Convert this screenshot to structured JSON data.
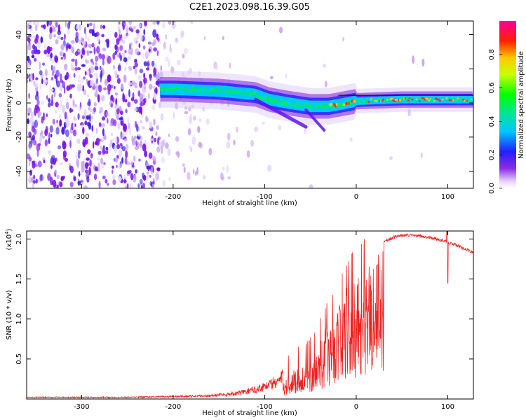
{
  "title": "C2E1.2023.098.16.39.G05",
  "chart_data": [
    {
      "type": "heatmap",
      "xlabel": "Height of straight line (km)",
      "ylabel": "Frequency (Hz)",
      "xlim": [
        -360,
        128
      ],
      "ylim": [
        -50,
        48
      ],
      "xticks": [
        -300,
        -200,
        -100,
        0,
        100
      ],
      "yticks": [
        -40,
        -20,
        0,
        20,
        40
      ],
      "colorbar": {
        "label": "Normalized spectral amplitude",
        "ticks": [
          "0.0",
          "0.2",
          "0.4",
          "0.6",
          "0.8"
        ],
        "range": [
          0,
          1
        ]
      },
      "signal_band": [
        {
          "x": -215,
          "f": 8
        },
        {
          "x": -200,
          "f": 8
        },
        {
          "x": -150,
          "f": 7
        },
        {
          "x": -110,
          "f": 5
        },
        {
          "x": -95,
          "f": 2
        },
        {
          "x": -75,
          "f": 0
        },
        {
          "x": -50,
          "f": -2
        },
        {
          "x": -30,
          "f": -2
        },
        {
          "x": -10,
          "f": 0
        },
        {
          "x": 0,
          "f": 1
        },
        {
          "x": 50,
          "f": 2
        },
        {
          "x": 100,
          "f": 2
        },
        {
          "x": 128,
          "f": 2
        }
      ]
    },
    {
      "type": "line",
      "xlabel": "Height of straight line (km)",
      "ylabel": "SNR (10 * v/v)",
      "y_multiplier": "(x10",
      "y_multiplier_exp": "4",
      "y_multiplier_close": ")",
      "xlim": [
        -360,
        128
      ],
      "ylim": [
        0,
        2.1
      ],
      "xticks": [
        -300,
        -200,
        -100,
        0,
        100
      ],
      "yticks": [
        "0.5",
        "1.0",
        "1.5",
        "2.0"
      ],
      "color": "#ee2222",
      "envelope": [
        {
          "x": -360,
          "y": 0.02
        },
        {
          "x": -250,
          "y": 0.02
        },
        {
          "x": -200,
          "y": 0.03
        },
        {
          "x": -160,
          "y": 0.04
        },
        {
          "x": -130,
          "y": 0.07
        },
        {
          "x": -110,
          "y": 0.12
        },
        {
          "x": -90,
          "y": 0.2
        },
        {
          "x": -75,
          "y": 0.3
        },
        {
          "x": -65,
          "y": 0.42
        },
        {
          "x": -55,
          "y": 0.45
        },
        {
          "x": -45,
          "y": 0.6
        },
        {
          "x": -35,
          "y": 0.9
        },
        {
          "x": -25,
          "y": 1.1
        },
        {
          "x": -15,
          "y": 1.4
        },
        {
          "x": -5,
          "y": 1.6
        },
        {
          "x": 5,
          "y": 1.75
        },
        {
          "x": 20,
          "y": 1.88
        },
        {
          "x": 30,
          "y": 1.97
        },
        {
          "x": 45,
          "y": 2.04
        },
        {
          "x": 60,
          "y": 2.05
        },
        {
          "x": 80,
          "y": 2.02
        },
        {
          "x": 95,
          "y": 1.98
        },
        {
          "x": 110,
          "y": 1.92
        },
        {
          "x": 128,
          "y": 1.83
        }
      ]
    }
  ]
}
